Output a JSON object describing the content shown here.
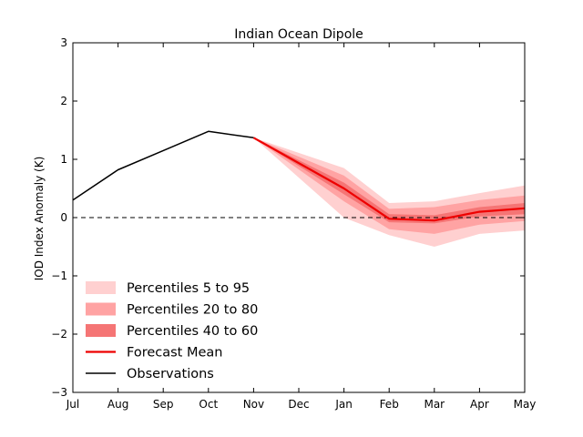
{
  "chart_data": {
    "type": "line",
    "title": "Indian Ocean Dipole",
    "ylabel": "IOD Index Anomaly (K)",
    "xlabel": "",
    "categories": [
      "Jul",
      "Aug",
      "Sep",
      "Oct",
      "Nov",
      "Dec",
      "Jan",
      "Feb",
      "Mar",
      "Apr",
      "May"
    ],
    "ylim": [
      -3,
      3
    ],
    "yticks": [
      -3,
      -2,
      -1,
      0,
      1,
      2,
      3
    ],
    "ytick_labels": [
      "−3",
      "−2",
      "−1",
      "0",
      "1",
      "2",
      "3"
    ],
    "zero_line": {
      "value": 0,
      "style": "dashed"
    },
    "grid": false,
    "legend_position": "lower-left",
    "observations": {
      "name": "Observations",
      "color": "#000000",
      "months": [
        "Jul",
        "Aug",
        "Sep",
        "Oct",
        "Nov"
      ],
      "values": [
        0.3,
        0.82,
        1.15,
        1.48,
        1.37
      ]
    },
    "forecast_mean": {
      "name": "Forecast Mean",
      "color": "#ee0000",
      "months": [
        "Nov",
        "Jan",
        "Feb",
        "Mar",
        "Apr",
        "May"
      ],
      "values": [
        1.37,
        0.5,
        -0.02,
        -0.05,
        0.1,
        0.16
      ]
    },
    "bands": [
      {
        "name": "Percentiles 5 to 95",
        "color": "#ffd0d0",
        "months": [
          "Nov",
          "Jan",
          "Feb",
          "Mar",
          "Apr",
          "May"
        ],
        "low": [
          1.37,
          0.0,
          -0.3,
          -0.5,
          -0.28,
          -0.22
        ],
        "high": [
          1.37,
          0.85,
          0.25,
          0.28,
          0.42,
          0.55
        ]
      },
      {
        "name": "Percentiles 20 to 80",
        "color": "#ffa3a3",
        "months": [
          "Nov",
          "Jan",
          "Feb",
          "Mar",
          "Apr",
          "May"
        ],
        "low": [
          1.37,
          0.28,
          -0.2,
          -0.28,
          -0.12,
          -0.06
        ],
        "high": [
          1.37,
          0.72,
          0.15,
          0.18,
          0.3,
          0.38
        ]
      },
      {
        "name": "Percentiles 40 to 60",
        "color": "#f57575",
        "months": [
          "Nov",
          "Jan",
          "Feb",
          "Mar",
          "Apr",
          "May"
        ],
        "low": [
          1.37,
          0.4,
          -0.08,
          -0.1,
          0.02,
          0.06
        ],
        "high": [
          1.37,
          0.6,
          0.06,
          0.04,
          0.18,
          0.25
        ]
      }
    ],
    "legend": [
      {
        "label": "Percentiles 5 to 95",
        "kind": "patch",
        "color": "#ffd0d0"
      },
      {
        "label": "Percentiles 20 to 80",
        "kind": "patch",
        "color": "#ffa3a3"
      },
      {
        "label": "Percentiles 40 to 60",
        "kind": "patch",
        "color": "#f57575"
      },
      {
        "label": "Forecast Mean",
        "kind": "line",
        "color": "#ee0000"
      },
      {
        "label": "Observations",
        "kind": "line",
        "color": "#000000"
      }
    ]
  }
}
